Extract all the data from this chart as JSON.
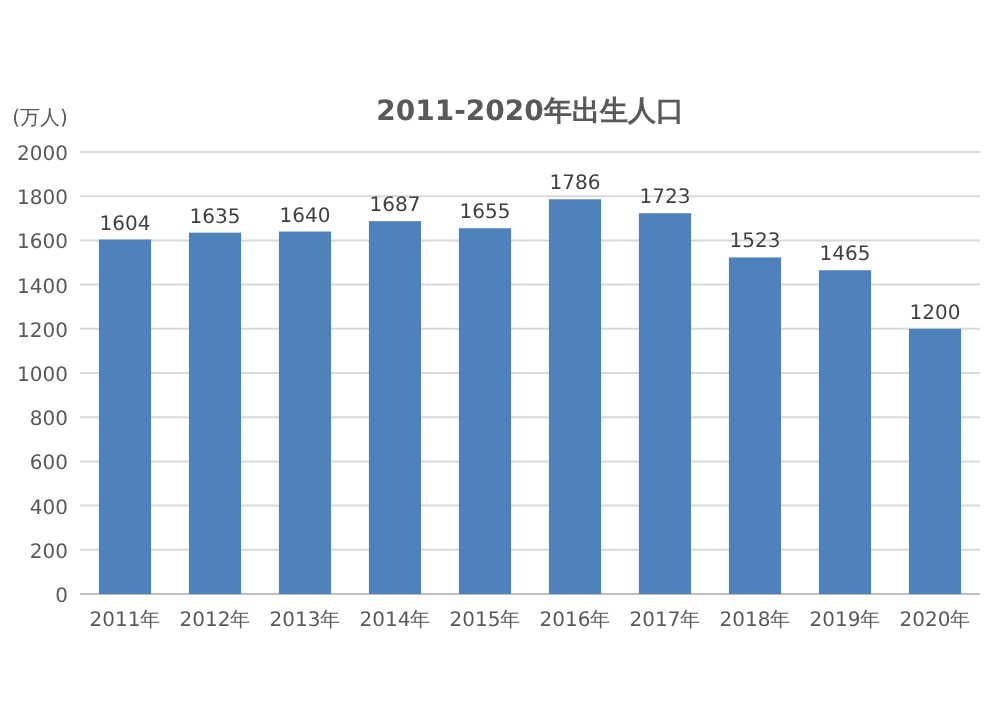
{
  "chart_data": {
    "type": "bar",
    "title": "2011-2020年出生人口",
    "ylabel": "(万人)",
    "categories": [
      "2011年",
      "2012年",
      "2013年",
      "2014年",
      "2015年",
      "2016年",
      "2017年",
      "2018年",
      "2019年",
      "2020年"
    ],
    "values": [
      1604,
      1635,
      1640,
      1687,
      1655,
      1786,
      1723,
      1523,
      1465,
      1200
    ],
    "color": "#4f81bd",
    "ylim": [
      0,
      2000
    ],
    "yticks": [
      0,
      200,
      400,
      600,
      800,
      1000,
      1200,
      1400,
      1600,
      1800,
      2000
    ],
    "grid": "y",
    "data_labels": true
  }
}
